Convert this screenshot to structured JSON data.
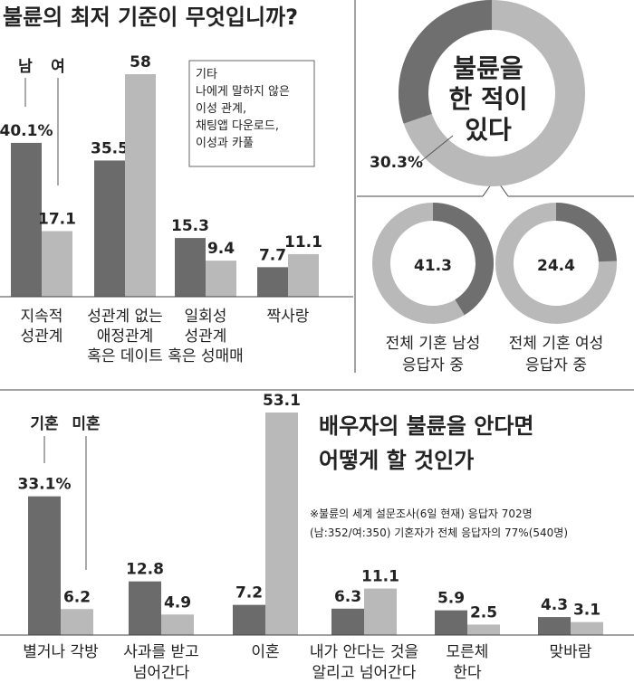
{
  "colors": {
    "male": "#6b6b6b",
    "female": "#b9b9b9",
    "ring_dark": "#6f6f6f",
    "ring_light": "#b9b9b9",
    "line": "#555555"
  },
  "chart_data": [
    {
      "type": "bar",
      "title": "불륜의 최저 기준이 무엇입니까?",
      "legend": [
        "남",
        "여"
      ],
      "categories": [
        [
          "지속적",
          "성관계"
        ],
        [
          "성관계 없는",
          "애정관계",
          "혹은 데이트"
        ],
        [
          "일회성",
          "성관계",
          "혹은 성매매"
        ],
        [
          "짝사랑"
        ]
      ],
      "series": [
        {
          "name": "남",
          "values": [
            40.1,
            35.5,
            15.3,
            7.7
          ],
          "labels": [
            "40.1%",
            "35.5",
            "15.3",
            "7.7"
          ]
        },
        {
          "name": "여",
          "values": [
            17.1,
            58,
            9.4,
            11.1
          ],
          "labels": [
            "17.1",
            "58",
            "9.4",
            "11.1"
          ]
        }
      ],
      "annotation": [
        "기타",
        "나에게 말하지 않은",
        "이성 관계,",
        "채팅앱 다운로드,",
        "이성과 카풀"
      ]
    },
    {
      "type": "pie",
      "title": [
        "불륜을",
        "한 적이",
        "있다"
      ],
      "donuts": [
        {
          "value": 30.3,
          "label": "30.3%",
          "caption": []
        },
        {
          "value": 41.3,
          "label": "41.3",
          "caption": [
            "전체 기혼 남성",
            "응답자 중"
          ]
        },
        {
          "value": 24.4,
          "label": "24.4",
          "caption": [
            "전체 기혼 여성",
            "응답자 중"
          ]
        }
      ]
    },
    {
      "type": "bar",
      "title": [
        "배우자의 불륜을 안다면",
        "어떻게 할 것인가"
      ],
      "legend": [
        "기혼",
        "미혼"
      ],
      "note": [
        "※불륜의 세계 설문조사(6일 현재) 응답자 702명",
        "(남:352/여:350) 기혼자가 전체 응답자의 77%(540명)"
      ],
      "categories": [
        [
          "별거나 각방"
        ],
        [
          "사과를 받고",
          "넘어간다"
        ],
        [
          "이혼"
        ],
        [
          "내가 안다는 것을",
          "알리고 넘어간다"
        ],
        [
          "모른체",
          "한다"
        ],
        [
          "맞바람"
        ]
      ],
      "series": [
        {
          "name": "기혼",
          "values": [
            33.1,
            12.8,
            7.2,
            6.3,
            5.9,
            4.3
          ],
          "labels": [
            "33.1%",
            "12.8",
            "7.2",
            "6.3",
            "5.9",
            "4.3"
          ]
        },
        {
          "name": "미혼",
          "values": [
            6.2,
            4.9,
            53.1,
            11.1,
            2.5,
            3.1
          ],
          "labels": [
            "6.2",
            "4.9",
            "53.1",
            "11.1",
            "2.5",
            "3.1"
          ]
        }
      ]
    }
  ]
}
